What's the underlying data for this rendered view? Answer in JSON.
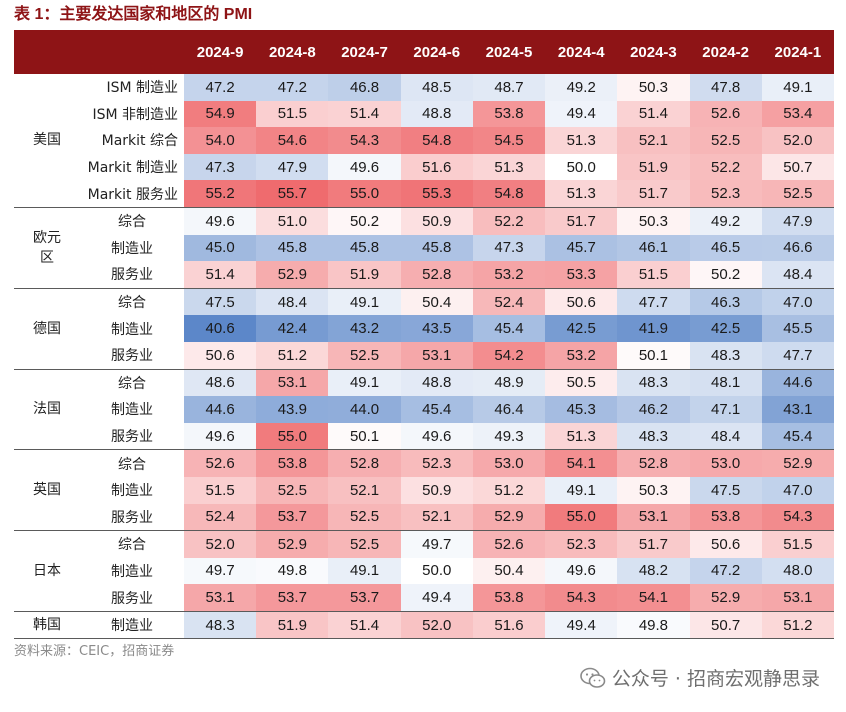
{
  "title": "表 1：主要发达国家和地区的 PMI",
  "columns": [
    "2024-9",
    "2024-8",
    "2024-7",
    "2024-6",
    "2024-5",
    "2024-4",
    "2024-3",
    "2024-2",
    "2024-1"
  ],
  "colors": {
    "header_bg": "#8e1416",
    "high": "#ef6b6e",
    "low": "#5c87c9",
    "mid": "#ffffff"
  },
  "scale": {
    "min": 40.6,
    "mid": 50.0,
    "max": 55.7
  },
  "groups": [
    {
      "region": "美国",
      "rows": [
        {
          "label": "ISM 制造业",
          "align": "right",
          "values": [
            "47.2",
            "47.2",
            "46.8",
            "48.5",
            "48.7",
            "49.2",
            "50.3",
            "47.8",
            "49.1"
          ]
        },
        {
          "label": "ISM 非制造业",
          "align": "right",
          "values": [
            "54.9",
            "51.5",
            "51.4",
            "48.8",
            "53.8",
            "49.4",
            "51.4",
            "52.6",
            "53.4"
          ]
        },
        {
          "label": "Markit 综合",
          "align": "right",
          "values": [
            "54.0",
            "54.6",
            "54.3",
            "54.8",
            "54.5",
            "51.3",
            "52.1",
            "52.5",
            "52.0"
          ]
        },
        {
          "label": "Markit 制造业",
          "align": "right",
          "values": [
            "47.3",
            "47.9",
            "49.6",
            "51.6",
            "51.3",
            "50.0",
            "51.9",
            "52.2",
            "50.7"
          ]
        },
        {
          "label": "Markit 服务业",
          "align": "right",
          "values": [
            "55.2",
            "55.7",
            "55.0",
            "55.3",
            "54.8",
            "51.3",
            "51.7",
            "52.3",
            "52.5"
          ]
        }
      ]
    },
    {
      "region": "欧元区",
      "rows": [
        {
          "label": "综合",
          "align": "center",
          "values": [
            "49.6",
            "51.0",
            "50.2",
            "50.9",
            "52.2",
            "51.7",
            "50.3",
            "49.2",
            "47.9"
          ]
        },
        {
          "label": "制造业",
          "align": "center",
          "values": [
            "45.0",
            "45.8",
            "45.8",
            "45.8",
            "47.3",
            "45.7",
            "46.1",
            "46.5",
            "46.6"
          ]
        },
        {
          "label": "服务业",
          "align": "center",
          "values": [
            "51.4",
            "52.9",
            "51.9",
            "52.8",
            "53.2",
            "53.3",
            "51.5",
            "50.2",
            "48.4"
          ]
        }
      ]
    },
    {
      "region": "德国",
      "rows": [
        {
          "label": "综合",
          "align": "center",
          "values": [
            "47.5",
            "48.4",
            "49.1",
            "50.4",
            "52.4",
            "50.6",
            "47.7",
            "46.3",
            "47.0"
          ]
        },
        {
          "label": "制造业",
          "align": "center",
          "values": [
            "40.6",
            "42.4",
            "43.2",
            "43.5",
            "45.4",
            "42.5",
            "41.9",
            "42.5",
            "45.5"
          ]
        },
        {
          "label": "服务业",
          "align": "center",
          "values": [
            "50.6",
            "51.2",
            "52.5",
            "53.1",
            "54.2",
            "53.2",
            "50.1",
            "48.3",
            "47.7"
          ]
        }
      ]
    },
    {
      "region": "法国",
      "rows": [
        {
          "label": "综合",
          "align": "center",
          "values": [
            "48.6",
            "53.1",
            "49.1",
            "48.8",
            "48.9",
            "50.5",
            "48.3",
            "48.1",
            "44.6"
          ]
        },
        {
          "label": "制造业",
          "align": "center",
          "values": [
            "44.6",
            "43.9",
            "44.0",
            "45.4",
            "46.4",
            "45.3",
            "46.2",
            "47.1",
            "43.1"
          ]
        },
        {
          "label": "服务业",
          "align": "center",
          "values": [
            "49.6",
            "55.0",
            "50.1",
            "49.6",
            "49.3",
            "51.3",
            "48.3",
            "48.4",
            "45.4"
          ]
        }
      ]
    },
    {
      "region": "英国",
      "rows": [
        {
          "label": "综合",
          "align": "center",
          "values": [
            "52.6",
            "53.8",
            "52.8",
            "52.3",
            "53.0",
            "54.1",
            "52.8",
            "53.0",
            "52.9"
          ]
        },
        {
          "label": "制造业",
          "align": "center",
          "values": [
            "51.5",
            "52.5",
            "52.1",
            "50.9",
            "51.2",
            "49.1",
            "50.3",
            "47.5",
            "47.0"
          ]
        },
        {
          "label": "服务业",
          "align": "center",
          "values": [
            "52.4",
            "53.7",
            "52.5",
            "52.1",
            "52.9",
            "55.0",
            "53.1",
            "53.8",
            "54.3"
          ]
        }
      ]
    },
    {
      "region": "日本",
      "rows": [
        {
          "label": "综合",
          "align": "center",
          "values": [
            "52.0",
            "52.9",
            "52.5",
            "49.7",
            "52.6",
            "52.3",
            "51.7",
            "50.6",
            "51.5"
          ]
        },
        {
          "label": "制造业",
          "align": "center",
          "values": [
            "49.7",
            "49.8",
            "49.1",
            "50.0",
            "50.4",
            "49.6",
            "48.2",
            "47.2",
            "48.0"
          ]
        },
        {
          "label": "服务业",
          "align": "center",
          "values": [
            "53.1",
            "53.7",
            "53.7",
            "49.4",
            "53.8",
            "54.3",
            "54.1",
            "52.9",
            "53.1"
          ]
        }
      ]
    },
    {
      "region": "韩国",
      "rows": [
        {
          "label": "制造业",
          "align": "center",
          "values": [
            "48.3",
            "51.9",
            "51.4",
            "52.0",
            "51.6",
            "49.4",
            "49.8",
            "50.7",
            "51.2"
          ]
        }
      ]
    }
  ],
  "source": "资料来源：CEIC，招商证券",
  "watermark": {
    "icon": "wechat-icon",
    "text": "公众号 · 招商宏观静思录"
  }
}
